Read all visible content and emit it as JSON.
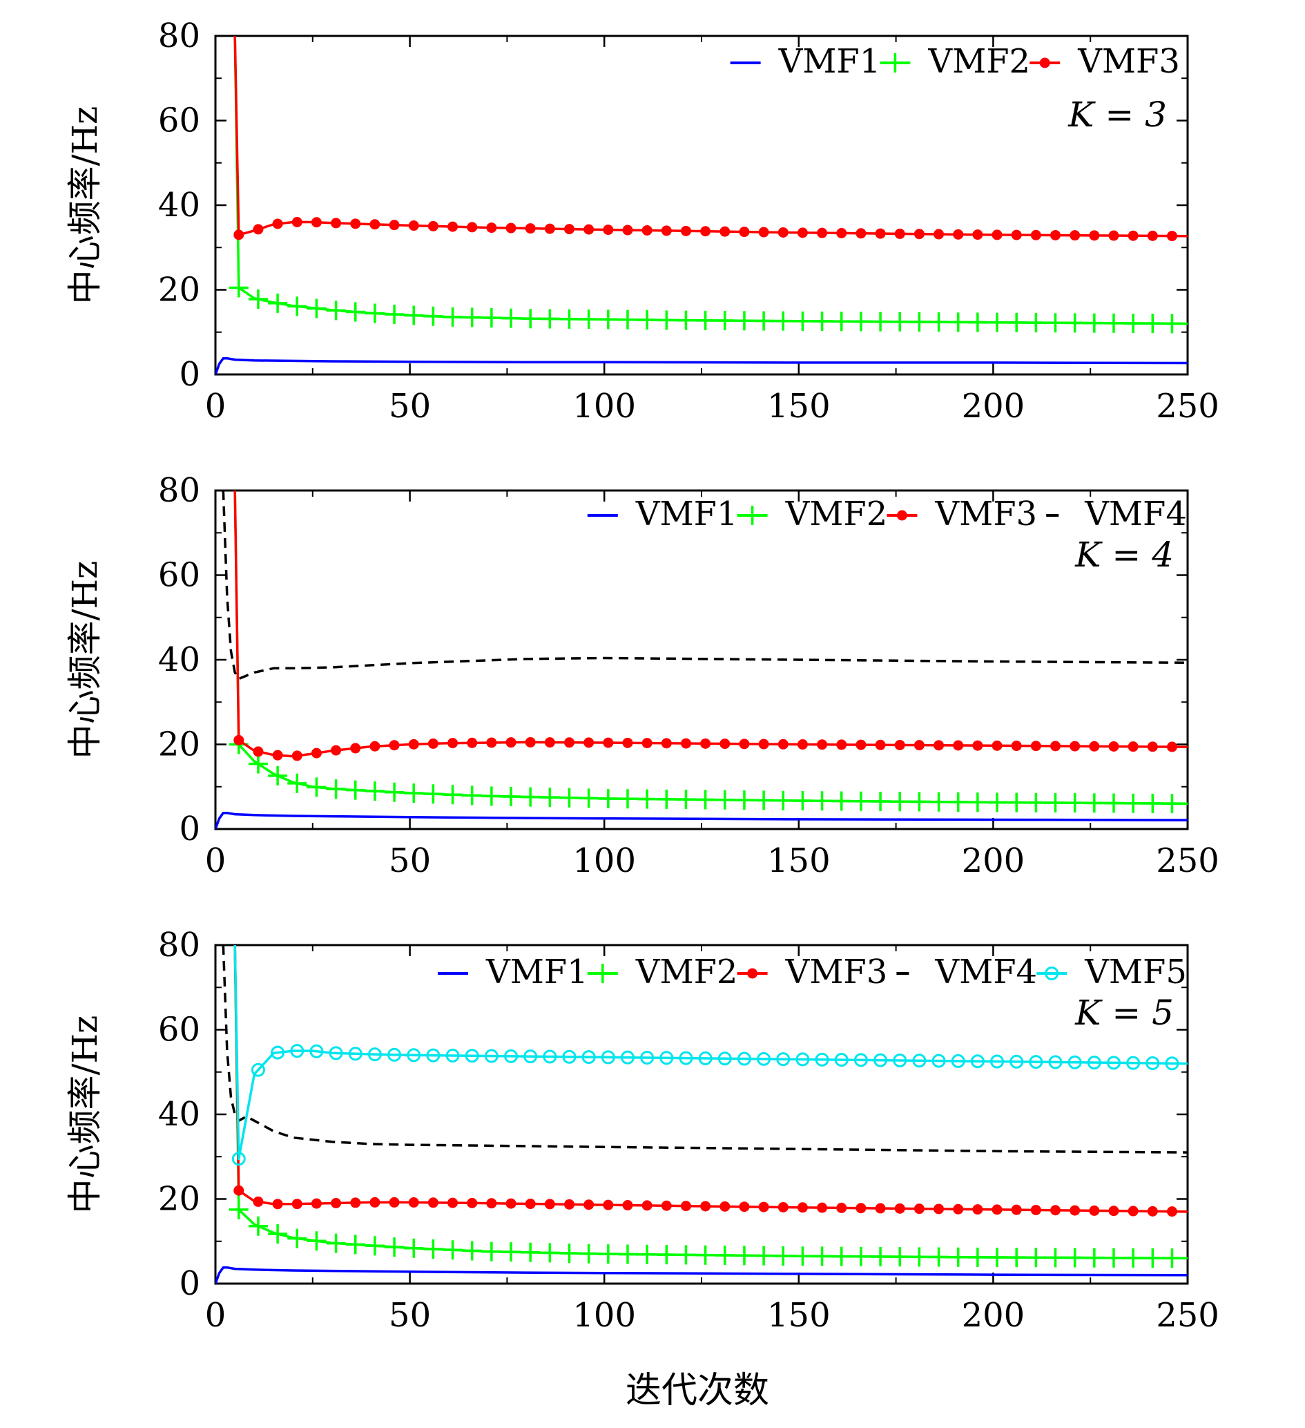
{
  "figure": {
    "xlabel": "迭代次数"
  },
  "chart_data": [
    {
      "type": "line",
      "annotation": "K = 3",
      "ylabel": "中心频率/Hz",
      "xlabel": "",
      "xlim": [
        0,
        250
      ],
      "ylim": [
        0,
        80
      ],
      "xticks": [
        0,
        50,
        100,
        150,
        200,
        250
      ],
      "yticks": [
        0,
        20,
        40,
        60,
        80
      ],
      "legend_position": "top-right",
      "grid": false,
      "series": [
        {
          "name": "VMF1",
          "color": "#0000ff",
          "marker": "none",
          "dash": "solid",
          "x": [
            0,
            1,
            2,
            3,
            5,
            10,
            20,
            30,
            50,
            80,
            100,
            150,
            200,
            250
          ],
          "y": [
            0,
            2.5,
            3.8,
            3.8,
            3.5,
            3.3,
            3.2,
            3.1,
            3.0,
            2.9,
            2.9,
            2.8,
            2.8,
            2.7
          ]
        },
        {
          "name": "VMF2",
          "color": "#00ff00",
          "marker": "plus",
          "dash": "solid",
          "x": [
            5,
            6,
            10,
            15,
            20,
            30,
            40,
            50,
            60,
            80,
            100,
            120,
            150,
            200,
            250
          ],
          "y": [
            80,
            20.5,
            18,
            17,
            16.2,
            15.2,
            14.5,
            14.0,
            13.6,
            13.2,
            13.0,
            12.8,
            12.6,
            12.3,
            12.0
          ]
        },
        {
          "name": "VMF3",
          "color": "#ff0000",
          "marker": "dot",
          "dash": "solid",
          "x": [
            5,
            6,
            10,
            15,
            20,
            25,
            30,
            40,
            50,
            70,
            100,
            150,
            200,
            250
          ],
          "y": [
            80,
            33,
            34,
            35.5,
            36,
            36,
            35.8,
            35.5,
            35.2,
            34.7,
            34.2,
            33.5,
            33.0,
            32.7
          ]
        }
      ]
    },
    {
      "type": "line",
      "annotation": "K = 4",
      "ylabel": "中心频率/Hz",
      "xlabel": "",
      "xlim": [
        0,
        250
      ],
      "ylim": [
        0,
        80
      ],
      "xticks": [
        0,
        50,
        100,
        150,
        200,
        250
      ],
      "yticks": [
        0,
        20,
        40,
        60,
        80
      ],
      "legend_position": "top-right",
      "grid": false,
      "series": [
        {
          "name": "VMF1",
          "color": "#0000ff",
          "marker": "none",
          "dash": "solid",
          "x": [
            0,
            1,
            2,
            3,
            5,
            10,
            20,
            30,
            50,
            80,
            100,
            150,
            200,
            250
          ],
          "y": [
            0,
            2.5,
            3.8,
            3.8,
            3.5,
            3.3,
            3.1,
            3.0,
            2.8,
            2.6,
            2.5,
            2.3,
            2.2,
            2.1
          ]
        },
        {
          "name": "VMF2",
          "color": "#00ff00",
          "marker": "plus",
          "dash": "solid",
          "x": [
            5,
            6,
            10,
            15,
            20,
            25,
            30,
            40,
            50,
            70,
            100,
            150,
            200,
            250
          ],
          "y": [
            80,
            20,
            16,
            13,
            11,
            10,
            9.5,
            9,
            8.5,
            7.8,
            7.2,
            6.7,
            6.3,
            6.0
          ]
        },
        {
          "name": "VMF3",
          "color": "#ff0000",
          "marker": "dot",
          "dash": "solid",
          "x": [
            5,
            6,
            10,
            15,
            20,
            25,
            30,
            40,
            50,
            60,
            80,
            100,
            150,
            200,
            250
          ],
          "y": [
            80,
            21,
            18.5,
            17.5,
            17.2,
            17.8,
            18.5,
            19.5,
            20,
            20.3,
            20.5,
            20.4,
            20.0,
            19.7,
            19.4
          ]
        },
        {
          "name": "VMF4",
          "color": "#000000",
          "marker": "none",
          "dash": "dashed",
          "x": [
            2,
            3,
            4,
            5,
            6,
            10,
            15,
            20,
            30,
            50,
            80,
            100,
            150,
            200,
            250
          ],
          "y": [
            80,
            55,
            42,
            37,
            35.5,
            37,
            38,
            38,
            38.2,
            39.2,
            40.2,
            40.4,
            40.0,
            39.6,
            39.3
          ]
        }
      ]
    },
    {
      "type": "line",
      "annotation": "K = 5",
      "ylabel": "中心频率/Hz",
      "xlabel": "迭代次数",
      "xlim": [
        0,
        250
      ],
      "ylim": [
        0,
        80
      ],
      "xticks": [
        0,
        50,
        100,
        150,
        200,
        250
      ],
      "yticks": [
        0,
        20,
        40,
        60,
        80
      ],
      "legend_position": "top-right",
      "grid": false,
      "series": [
        {
          "name": "VMF1",
          "color": "#0000ff",
          "marker": "none",
          "dash": "solid",
          "x": [
            0,
            1,
            2,
            3,
            5,
            10,
            20,
            30,
            50,
            80,
            100,
            150,
            200,
            250
          ],
          "y": [
            0,
            2.5,
            3.8,
            3.8,
            3.5,
            3.3,
            3.1,
            3.0,
            2.8,
            2.6,
            2.5,
            2.3,
            2.1,
            2.0
          ]
        },
        {
          "name": "VMF2",
          "color": "#00ff00",
          "marker": "plus",
          "dash": "solid",
          "x": [
            5,
            6,
            10,
            15,
            20,
            25,
            30,
            40,
            50,
            70,
            100,
            150,
            200,
            250
          ],
          "y": [
            80,
            17.5,
            14,
            12,
            10.8,
            10.2,
            9.6,
            9.0,
            8.4,
            7.6,
            7.0,
            6.5,
            6.2,
            6.0
          ]
        },
        {
          "name": "VMF3",
          "color": "#ff0000",
          "marker": "dot",
          "dash": "solid",
          "x": [
            5,
            6,
            10,
            15,
            20,
            30,
            40,
            50,
            70,
            100,
            150,
            200,
            250
          ],
          "y": [
            80,
            22,
            19.5,
            18.8,
            18.8,
            19,
            19.2,
            19.2,
            19,
            18.6,
            18,
            17.5,
            17
          ]
        },
        {
          "name": "VMF4",
          "color": "#000000",
          "marker": "none",
          "dash": "dashed",
          "x": [
            2,
            3,
            4,
            5,
            6,
            8,
            10,
            15,
            20,
            30,
            40,
            50,
            100,
            150,
            200,
            250
          ],
          "y": [
            80,
            55,
            44,
            40,
            38.5,
            39.5,
            38.5,
            36,
            34.5,
            33.5,
            33,
            32.8,
            32.3,
            31.8,
            31.3,
            31
          ]
        },
        {
          "name": "VMF5",
          "color": "#00e5ee",
          "marker": "circle",
          "dash": "solid",
          "x": [
            5,
            6,
            10,
            15,
            20,
            25,
            30,
            40,
            50,
            70,
            100,
            150,
            200,
            250
          ],
          "y": [
            80,
            29.5,
            49.5,
            54.5,
            55,
            55,
            54.5,
            54.2,
            54,
            53.8,
            53.5,
            53,
            52.5,
            52
          ]
        }
      ]
    }
  ]
}
